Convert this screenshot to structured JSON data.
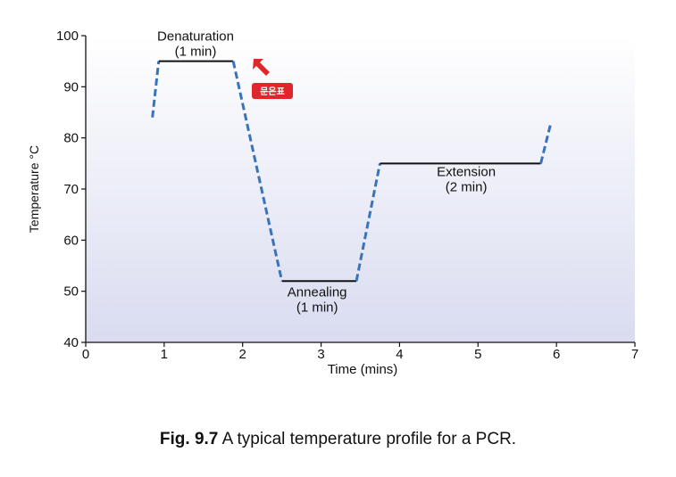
{
  "chart_data": {
    "type": "line",
    "title": "",
    "xlabel": "Time (mins)",
    "ylabel": "Temperature °C",
    "xlim": [
      0,
      7
    ],
    "ylim": [
      40,
      100
    ],
    "x_ticks": [
      "0",
      "1",
      "2",
      "3",
      "4",
      "5",
      "6",
      "7"
    ],
    "y_ticks": [
      "40",
      "50",
      "60",
      "70",
      "80",
      "90",
      "100"
    ],
    "grid": false,
    "series": [
      {
        "values": [
          {
            "x": 0.85,
            "y": 84,
            "style": "dashed"
          },
          {
            "x": 0.93,
            "y": 95,
            "style": "solid"
          },
          {
            "x": 1.88,
            "y": 95,
            "style": "dashed"
          },
          {
            "x": 2.5,
            "y": 52,
            "style": "solid"
          },
          {
            "x": 3.45,
            "y": 52,
            "style": "dashed"
          },
          {
            "x": 3.75,
            "y": 75,
            "style": "solid"
          },
          {
            "x": 5.8,
            "y": 75,
            "style": "dashed"
          },
          {
            "x": 5.93,
            "y": 83,
            "style": "end"
          }
        ]
      }
    ],
    "annotations": [
      {
        "id": "denaturation",
        "line1": "Denaturation",
        "line2": "(1 min)",
        "x": 1.4,
        "y": 99
      },
      {
        "id": "annealing",
        "line1": "Annealing",
        "line2": "(1 min)",
        "x": 2.95,
        "y": 49
      },
      {
        "id": "extension",
        "line1": "Extension",
        "line2": "(2 min)",
        "x": 4.85,
        "y": 72.5
      }
    ],
    "colors": {
      "ramp": "#3b73b9",
      "hold": "#111111",
      "background_top": "#ffffff",
      "background_bottom": "#d9dcf0"
    }
  },
  "badge": {
    "text": "문은표",
    "color": "#e0262b"
  },
  "caption": {
    "label": "Fig.  9.7",
    "text": " A typical temperature profile for a PCR."
  }
}
